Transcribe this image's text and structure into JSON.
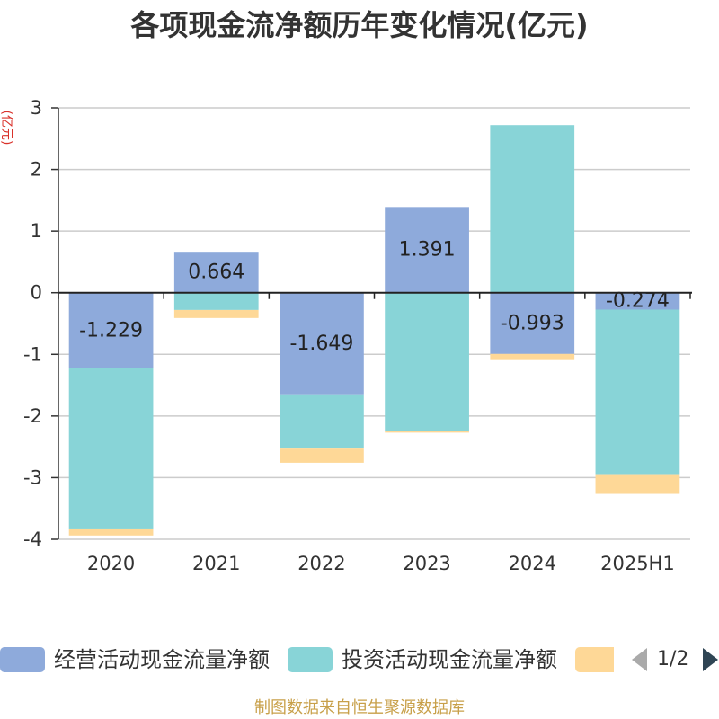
{
  "chart_data": {
    "type": "bar",
    "stacked": true,
    "title": "各项现金流净额历年变化情况(亿元)",
    "ylabel": "(亿元)",
    "categories": [
      "2020",
      "2021",
      "2022",
      "2023",
      "2024",
      "2025H1"
    ],
    "ylim": [
      -4,
      3
    ],
    "yticks": [
      3,
      2,
      1,
      0,
      -1,
      -2,
      -3,
      -4
    ],
    "grid": true,
    "legend_position": "bottom",
    "series": [
      {
        "name": "经营活动现金流量净额",
        "values": [
          -1.229,
          0.664,
          -1.649,
          1.391,
          -0.993,
          -0.274
        ],
        "color": "#8eaadb",
        "show_labels": true
      },
      {
        "name": "投资活动现金流量净额",
        "values": [
          -2.61,
          -0.28,
          -0.88,
          -2.25,
          2.72,
          -2.67
        ],
        "color": "#88d4d7"
      },
      {
        "values": [
          -0.1,
          -0.13,
          -0.23,
          -0.02,
          -0.1,
          -0.32
        ],
        "color": "#fed897"
      }
    ]
  },
  "legend": {
    "page": "1/2",
    "prev_icon": "chevron-left-icon",
    "next_icon": "chevron-right-icon"
  },
  "footer": {
    "source": "制图数据来自恒生聚源数据库",
    "color": "#c8a04a"
  },
  "colors": {
    "ylabel": "#d9322b"
  }
}
